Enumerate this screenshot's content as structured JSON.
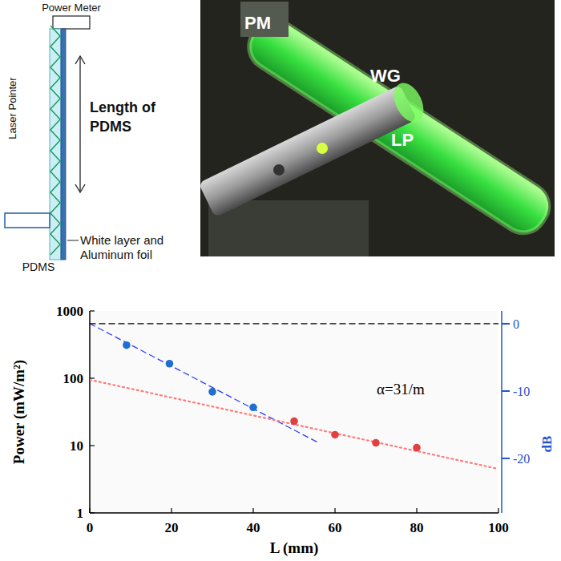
{
  "diagram": {
    "power_meter": "Power Meter",
    "laser_pointer": "Laser Pointer",
    "length": "Length of PDMS",
    "pdms": "PDMS",
    "layer": "White layer and Aluminum foil"
  },
  "photo": {
    "labels": [
      "PM",
      "WG",
      "LP"
    ]
  },
  "chart_data": {
    "type": "scatter",
    "x_label": "L (mm)",
    "y_label": "Power (mW/m²)",
    "y2_label": "dB",
    "annotations": [
      "α=31/m"
    ],
    "log": "y",
    "xlim": [
      0,
      100
    ],
    "xticks": [
      0,
      20,
      40,
      60,
      80,
      100
    ],
    "ylim": [
      1,
      1000
    ],
    "yticks": [
      1,
      10,
      100,
      1000
    ],
    "y2lim": [
      -28.1,
      1.9
    ],
    "y2ticks": [
      0,
      -10,
      -20
    ],
    "grid": false,
    "series": [
      {
        "type": "scatter",
        "color": "#1f6fd1",
        "marker": "circle",
        "x": [
          9,
          19.5,
          30,
          40
        ],
        "values": [
          310,
          165,
          63,
          37
        ]
      },
      {
        "type": "scatter",
        "color": "#e04040",
        "marker": "circle",
        "x": [
          50,
          60,
          70,
          80
        ],
        "values": [
          23,
          14.5,
          11,
          9.3
        ]
      },
      {
        "type": "line",
        "color": "#2a3cff",
        "line_style": "dashed",
        "x": [
          0,
          56
        ],
        "values": [
          650,
          11
        ]
      },
      {
        "type": "line",
        "color": "#ff7a7a",
        "line_style": "dotted",
        "x": [
          0,
          100
        ],
        "values": [
          95,
          4.5
        ]
      },
      {
        "type": "line",
        "color": "#000000",
        "line_style": "dashed",
        "axis": "y2",
        "x": [
          0,
          100
        ],
        "values": [
          0,
          0
        ]
      }
    ]
  }
}
